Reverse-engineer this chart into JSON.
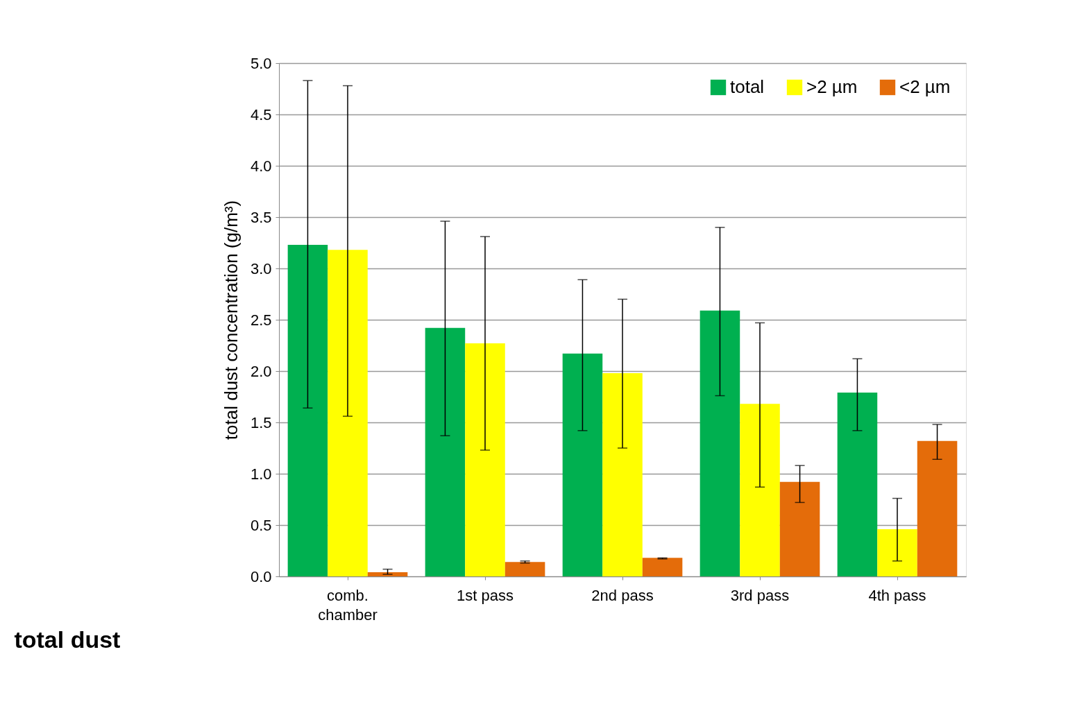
{
  "chart_data": {
    "type": "bar",
    "title": "total dust",
    "ylabel": "total dust concentration (g/m³)",
    "categories": [
      "comb. chamber",
      "1st pass",
      "2nd pass",
      "3rd pass",
      "4th pass"
    ],
    "series": [
      {
        "name": "total",
        "color": "#00b050",
        "values": [
          3.23,
          2.42,
          2.17,
          2.59,
          1.79
        ],
        "errors": [
          [
            1.64,
            4.83
          ],
          [
            1.37,
            3.46
          ],
          [
            1.42,
            2.89
          ],
          [
            1.76,
            3.4
          ],
          [
            1.42,
            2.12
          ]
        ]
      },
      {
        "name": ">2 µm",
        "color": "#ffff00",
        "values": [
          3.18,
          2.27,
          1.98,
          1.68,
          0.46
        ],
        "errors": [
          [
            1.56,
            4.78
          ],
          [
            1.23,
            3.31
          ],
          [
            1.25,
            2.7
          ],
          [
            0.87,
            2.47
          ],
          [
            0.15,
            0.76
          ]
        ]
      },
      {
        "name": "<2 µm",
        "color": "#e46c0a",
        "values": [
          0.04,
          0.14,
          0.18,
          0.92,
          1.32
        ],
        "errors": [
          [
            0.02,
            0.07
          ],
          [
            0.13,
            0.15
          ],
          [
            0.17,
            0.18
          ],
          [
            0.72,
            1.08
          ],
          [
            1.14,
            1.48
          ]
        ]
      }
    ],
    "ylim": [
      0,
      5
    ],
    "yticks": [
      {
        "value": 0,
        "label": "0.0"
      },
      {
        "value": 0.5,
        "label": "0.5"
      },
      {
        "value": 1,
        "label": "1.0"
      },
      {
        "value": 1.5,
        "label": "1.5"
      },
      {
        "value": 2,
        "label": "2.0"
      },
      {
        "value": 2.5,
        "label": "2.5"
      },
      {
        "value": 3,
        "label": "3.0"
      },
      {
        "value": 3.5,
        "label": "3.5"
      },
      {
        "value": 4,
        "label": "4.0"
      },
      {
        "value": 4.5,
        "label": "4.5"
      },
      {
        "value": 5,
        "label": "5.0"
      }
    ],
    "grid": "y",
    "legend": "top right"
  }
}
